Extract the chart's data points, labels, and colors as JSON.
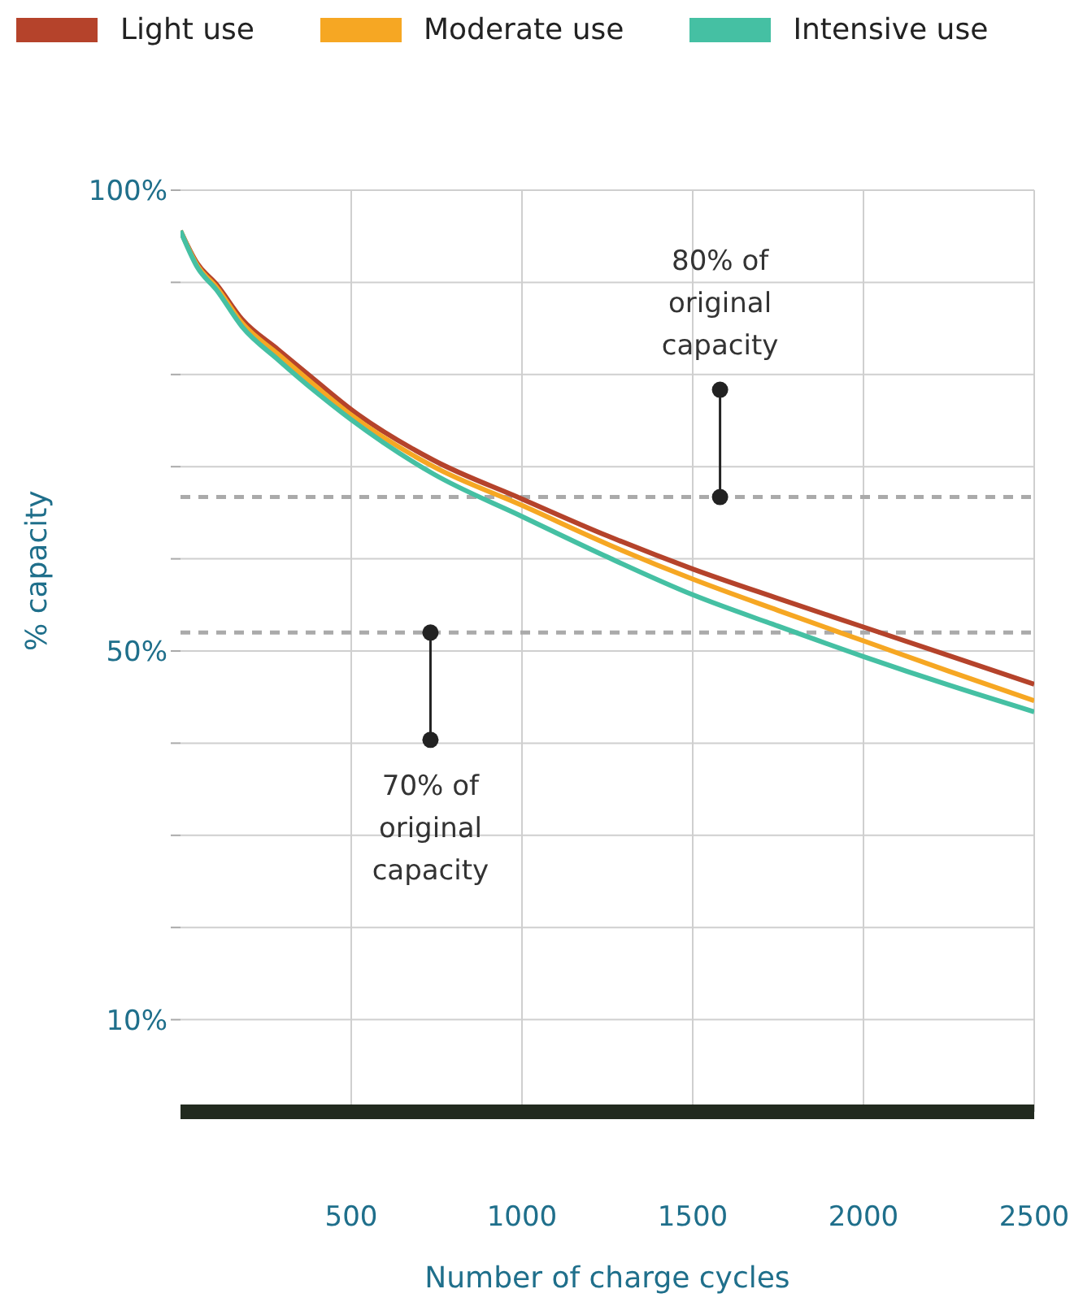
{
  "chart_data": {
    "type": "line",
    "xlabel": "Number of charge cycles",
    "ylabel": "% capacity",
    "x": [
      0,
      50,
      105,
      180,
      286,
      400,
      500,
      741,
      1000,
      1250,
      1500,
      1750,
      2000,
      2250,
      2500
    ],
    "series": [
      {
        "name": "Light use",
        "color": "#b5432b",
        "values": [
          95.6,
          92,
          89.8,
          86,
          82.7,
          79.2,
          76.2,
          70.7,
          66.5,
          62.5,
          58.9,
          55.7,
          52.6,
          49.5,
          46.4
        ]
      },
      {
        "name": "Moderate use",
        "color": "#f6a723",
        "values": [
          95.6,
          91.8,
          89.5,
          85.6,
          82.2,
          78.6,
          75.6,
          70,
          65.8,
          61.6,
          57.8,
          54.4,
          51.1,
          47.8,
          44.6
        ]
      },
      {
        "name": "Intensive use",
        "color": "#45c0a3",
        "values": [
          95.6,
          91.6,
          89.2,
          85.2,
          81.6,
          78,
          75.1,
          69.2,
          64.6,
          60.2,
          56.1,
          52.7,
          49.4,
          46.3,
          43.4
        ]
      }
    ],
    "xlim": [
      0,
      2500
    ],
    "xticks": [
      500,
      1000,
      1500,
      2000,
      2500
    ],
    "ylim": [
      0,
      100
    ],
    "yticks": [
      {
        "value": 10,
        "label": "10%"
      },
      {
        "value": 20,
        "label": null
      },
      {
        "value": 30,
        "label": null
      },
      {
        "value": 40,
        "label": null
      },
      {
        "value": 50,
        "label": "50%"
      },
      {
        "value": 60,
        "label": null
      },
      {
        "value": 70,
        "label": null
      },
      {
        "value": 80,
        "label": null
      },
      {
        "value": 90,
        "label": null
      },
      {
        "value": 100,
        "label": "100%"
      }
    ],
    "ref_lines": [
      {
        "axis": "y",
        "value": 66.7,
        "color": "#aaaaaa",
        "line_style": "dashed"
      },
      {
        "axis": "y",
        "value": 52,
        "color": "#aaaaaa",
        "line_style": "dashed"
      }
    ],
    "annotations": [
      {
        "text": "80% of\noriginal\ncapacity",
        "x": 1580,
        "y": 66.7
      },
      {
        "text": "70% of\noriginal\ncapacity",
        "x": 732,
        "y": 52
      }
    ],
    "grid": true,
    "legend": "top left",
    "line_style": "solid",
    "marker": "none"
  }
}
